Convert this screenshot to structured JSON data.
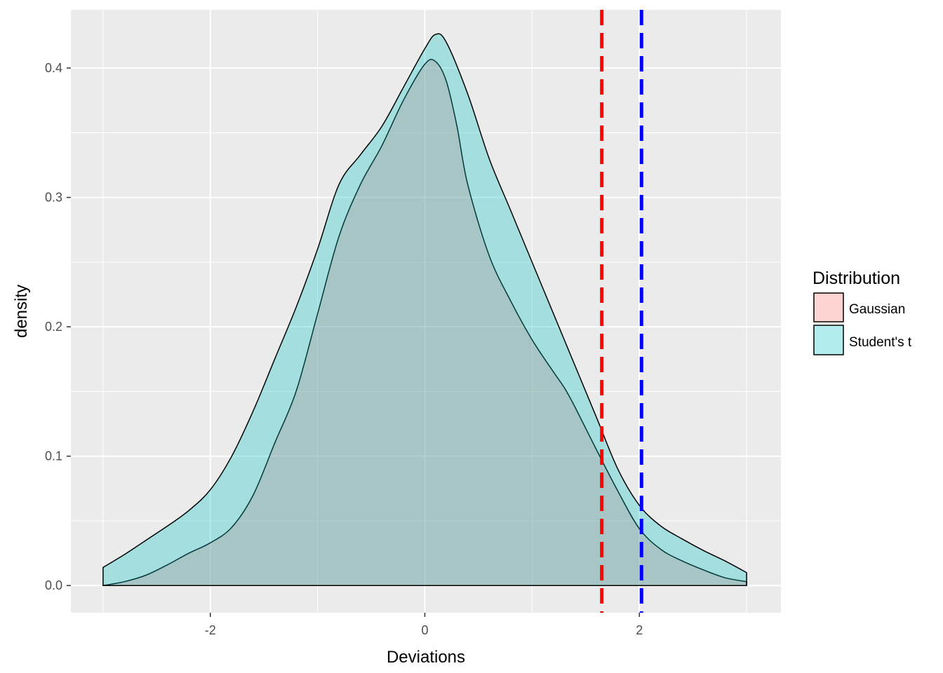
{
  "chart_data": {
    "type": "area",
    "title": "",
    "xlabel": "Deviations",
    "ylabel": "density",
    "xlim": [
      -3.3,
      3.32
    ],
    "ylim": [
      -0.021,
      0.445
    ],
    "x_ticks": [
      -2,
      0,
      2
    ],
    "x_tick_labels": [
      "-2",
      "0",
      "2"
    ],
    "y_ticks": [
      0.0,
      0.1,
      0.2,
      0.3,
      0.4
    ],
    "y_tick_labels": [
      "0.0",
      "0.1",
      "0.2",
      "0.3",
      "0.4"
    ],
    "grid": true,
    "legend": {
      "title": "Distribution",
      "position": "right",
      "entries": [
        "Gaussian",
        "Student's t"
      ]
    },
    "colors": {
      "panel": "#ebebeb",
      "grid": "#ffffff",
      "gaussian_fill": "#f8766d",
      "student_fill": "#00bfc4",
      "fill_opacity": 0.3,
      "outline": "#000000",
      "vline_red": "#ff0000",
      "vline_blue": "#0000ff"
    },
    "series": [
      {
        "name": "Gaussian",
        "x": [
          -3.0,
          -2.8,
          -2.6,
          -2.4,
          -2.2,
          -2.0,
          -1.8,
          -1.6,
          -1.4,
          -1.2,
          -1.0,
          -0.8,
          -0.6,
          -0.4,
          -0.2,
          0.0,
          0.1,
          0.2,
          0.3,
          0.4,
          0.6,
          0.8,
          1.0,
          1.2,
          1.3,
          1.4,
          1.6,
          1.8,
          2.0,
          2.2,
          2.4,
          2.6,
          2.8,
          3.0
        ],
        "y": [
          0.0,
          0.003,
          0.008,
          0.016,
          0.025,
          0.033,
          0.045,
          0.07,
          0.11,
          0.15,
          0.21,
          0.27,
          0.31,
          0.34,
          0.375,
          0.403,
          0.405,
          0.39,
          0.355,
          0.31,
          0.255,
          0.22,
          0.19,
          0.165,
          0.153,
          0.138,
          0.105,
          0.073,
          0.044,
          0.028,
          0.019,
          0.012,
          0.006,
          0.003
        ]
      },
      {
        "name": "Student's t",
        "x": [
          -3.0,
          -2.8,
          -2.6,
          -2.4,
          -2.2,
          -2.0,
          -1.8,
          -1.6,
          -1.4,
          -1.2,
          -1.0,
          -0.8,
          -0.6,
          -0.4,
          -0.2,
          0.0,
          0.1,
          0.2,
          0.4,
          0.6,
          0.8,
          1.0,
          1.2,
          1.3,
          1.4,
          1.6,
          1.8,
          2.0,
          2.2,
          2.4,
          2.6,
          2.8,
          3.0
        ],
        "y": [
          0.014,
          0.024,
          0.035,
          0.046,
          0.058,
          0.074,
          0.1,
          0.135,
          0.175,
          0.215,
          0.26,
          0.31,
          0.333,
          0.355,
          0.385,
          0.415,
          0.426,
          0.42,
          0.38,
          0.33,
          0.29,
          0.25,
          0.21,
          0.19,
          0.17,
          0.13,
          0.09,
          0.062,
          0.046,
          0.036,
          0.027,
          0.019,
          0.01
        ]
      }
    ],
    "vlines": [
      {
        "x": 1.65,
        "color": "red",
        "style": "dashed"
      },
      {
        "x": 2.02,
        "color": "blue",
        "style": "dashed"
      }
    ]
  }
}
